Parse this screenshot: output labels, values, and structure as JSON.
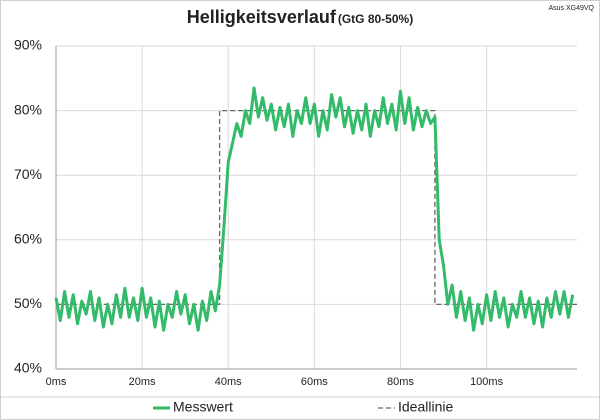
{
  "chart_data": {
    "type": "line",
    "title": "Helligkeitsverlauf",
    "subtitle": "(GtG 80-50%)",
    "annotation": "Asus XG49VQ",
    "xlim": [
      0,
      121
    ],
    "xticks": [
      {
        "value": 0,
        "label": "0ms"
      },
      {
        "value": 20,
        "label": "20ms"
      },
      {
        "value": 40,
        "label": "40ms"
      },
      {
        "value": 60,
        "label": "60ms"
      },
      {
        "value": 80,
        "label": "80ms"
      },
      {
        "value": 100,
        "label": "100ms"
      }
    ],
    "ylim": [
      40,
      90
    ],
    "yticks": [
      {
        "value": 40,
        "label": "40%"
      },
      {
        "value": 50,
        "label": "50%"
      },
      {
        "value": 60,
        "label": "60%"
      },
      {
        "value": 70,
        "label": "70%"
      },
      {
        "value": 80,
        "label": "80%"
      },
      {
        "value": 90,
        "label": "90%"
      }
    ],
    "grid": true,
    "legend": "bottom",
    "series": [
      {
        "name": "Messwert",
        "color": "#33bb6a",
        "style": "solid",
        "x": [
          0,
          1,
          2,
          3,
          4,
          5,
          6,
          7,
          8,
          9,
          10,
          11,
          12,
          13,
          14,
          15,
          16,
          17,
          18,
          19,
          20,
          21,
          22,
          23,
          24,
          25,
          26,
          27,
          28,
          29,
          30,
          31,
          32,
          33,
          34,
          35,
          36,
          37,
          38,
          39,
          40,
          41,
          42,
          43,
          44,
          45,
          46,
          47,
          48,
          49,
          50,
          51,
          52,
          53,
          54,
          55,
          56,
          57,
          58,
          59,
          60,
          61,
          62,
          63,
          64,
          65,
          66,
          67,
          68,
          69,
          70,
          71,
          72,
          73,
          74,
          75,
          76,
          77,
          78,
          79,
          80,
          81,
          82,
          83,
          84,
          85,
          86,
          87,
          88,
          89,
          90,
          91,
          92,
          93,
          94,
          95,
          96,
          97,
          98,
          99,
          100,
          101,
          102,
          103,
          104,
          105,
          106,
          107,
          108,
          109,
          110,
          111,
          112,
          113,
          114,
          115,
          116,
          117,
          118,
          119,
          120
        ],
        "values": [
          51,
          47.5,
          52,
          48,
          51.5,
          47,
          50.5,
          48.5,
          52,
          47.5,
          51,
          46.5,
          50,
          47,
          51.5,
          48,
          52.5,
          48,
          51,
          47.5,
          52.5,
          48,
          51,
          46.5,
          50.5,
          46,
          50,
          48,
          52,
          48.5,
          51.5,
          47,
          50,
          46,
          50.5,
          47.5,
          52,
          49,
          53,
          62,
          72,
          75,
          78,
          76,
          80,
          78,
          83.5,
          79,
          82,
          78.5,
          81,
          77,
          80.5,
          77.5,
          81,
          76,
          80,
          78,
          82,
          78,
          81,
          76,
          80,
          77,
          82.5,
          79,
          82,
          77.5,
          80.5,
          76.5,
          80,
          77,
          81,
          76,
          80,
          77.5,
          82,
          78,
          81,
          77,
          83,
          78,
          82,
          77,
          80.5,
          77.5,
          80,
          78,
          79,
          60,
          56,
          50,
          53,
          48,
          52,
          47.5,
          51,
          46,
          50,
          47,
          51.5,
          47.5,
          52,
          48,
          51,
          46.5,
          50,
          48,
          52,
          48,
          51,
          47,
          50.5,
          46.5,
          51,
          48,
          52,
          48.5,
          52,
          48,
          51.5
        ]
      },
      {
        "name": "Ideallinie",
        "color": "#666666",
        "style": "dashed",
        "x": [
          0,
          38,
          38,
          88,
          88,
          121
        ],
        "values": [
          50,
          50,
          80,
          80,
          50,
          50
        ]
      }
    ]
  }
}
